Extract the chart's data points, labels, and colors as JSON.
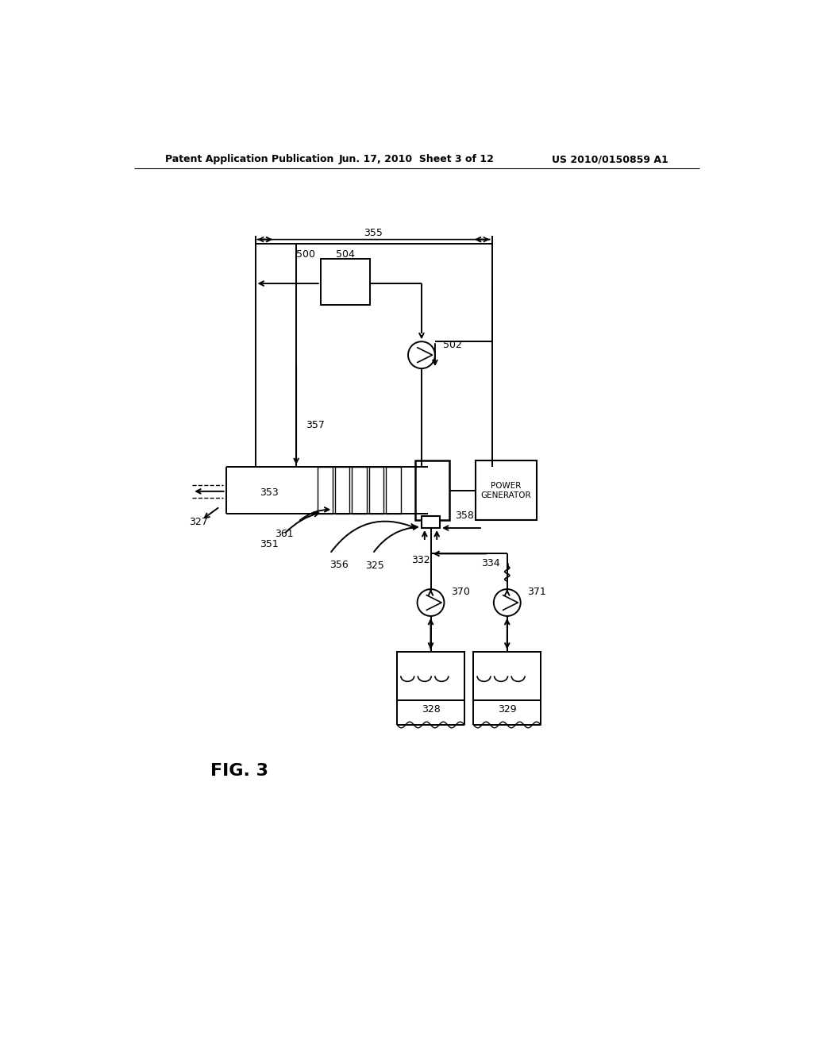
{
  "bg_color": "#ffffff",
  "line_color": "#000000",
  "header_left": "Patent Application Publication",
  "header_mid": "Jun. 17, 2010  Sheet 3 of 12",
  "header_right": "US 2010/0150859 A1",
  "fig_label": "FIG. 3"
}
